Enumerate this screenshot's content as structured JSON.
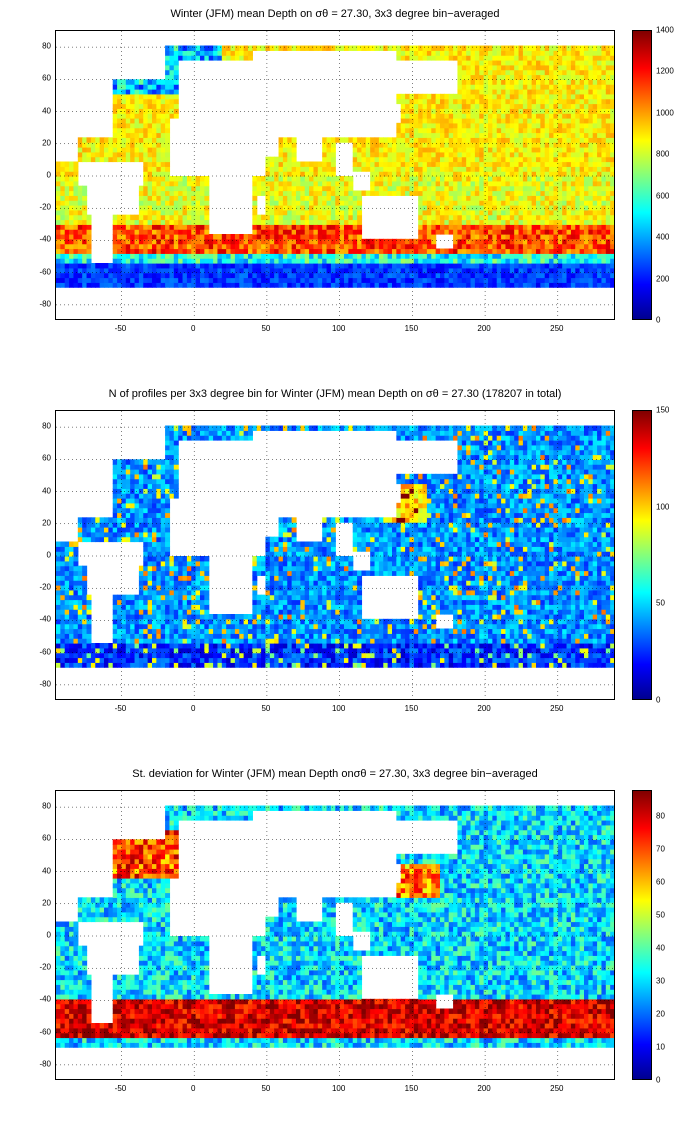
{
  "panels": [
    {
      "id": "mean-depth",
      "title": "Winter (JFM) mean Depth on σθ = 27.30, 3x3 degree bin−averaged",
      "colorbar_ticks": [
        "0",
        "200",
        "400",
        "600",
        "800",
        "1000",
        "1200",
        "1400"
      ],
      "colorbar_range": [
        0,
        1400
      ]
    },
    {
      "id": "profile-count",
      "title": "N of profiles per 3x3 degree bin for Winter (JFM) mean Depth on σθ = 27.30 (178207 in total)",
      "colorbar_ticks": [
        "0",
        "50",
        "100",
        "150"
      ],
      "colorbar_range": [
        0,
        150
      ]
    },
    {
      "id": "std-dev",
      "title": "St. deviation for Winter (JFM) mean Depth onσθ = 27.30, 3x3 degree bin−averaged",
      "colorbar_ticks": [
        "0",
        "10",
        "20",
        "30",
        "40",
        "50",
        "60",
        "70",
        "80"
      ],
      "colorbar_range": [
        0,
        88
      ]
    }
  ],
  "axes": {
    "x_ticks": [
      "-50",
      "0",
      "50",
      "100",
      "150",
      "200",
      "250"
    ],
    "x_values": [
      -50,
      0,
      50,
      100,
      150,
      200,
      250
    ],
    "x_range": [
      -95,
      290
    ],
    "y_ticks": [
      "80",
      "60",
      "40",
      "20",
      "0",
      "-20",
      "-40",
      "-60",
      "-80"
    ],
    "y_values": [
      80,
      60,
      40,
      20,
      0,
      -20,
      -40,
      -60,
      -80
    ],
    "y_range": [
      -90,
      90
    ],
    "grid": "dotted"
  },
  "colormap": "jet"
}
